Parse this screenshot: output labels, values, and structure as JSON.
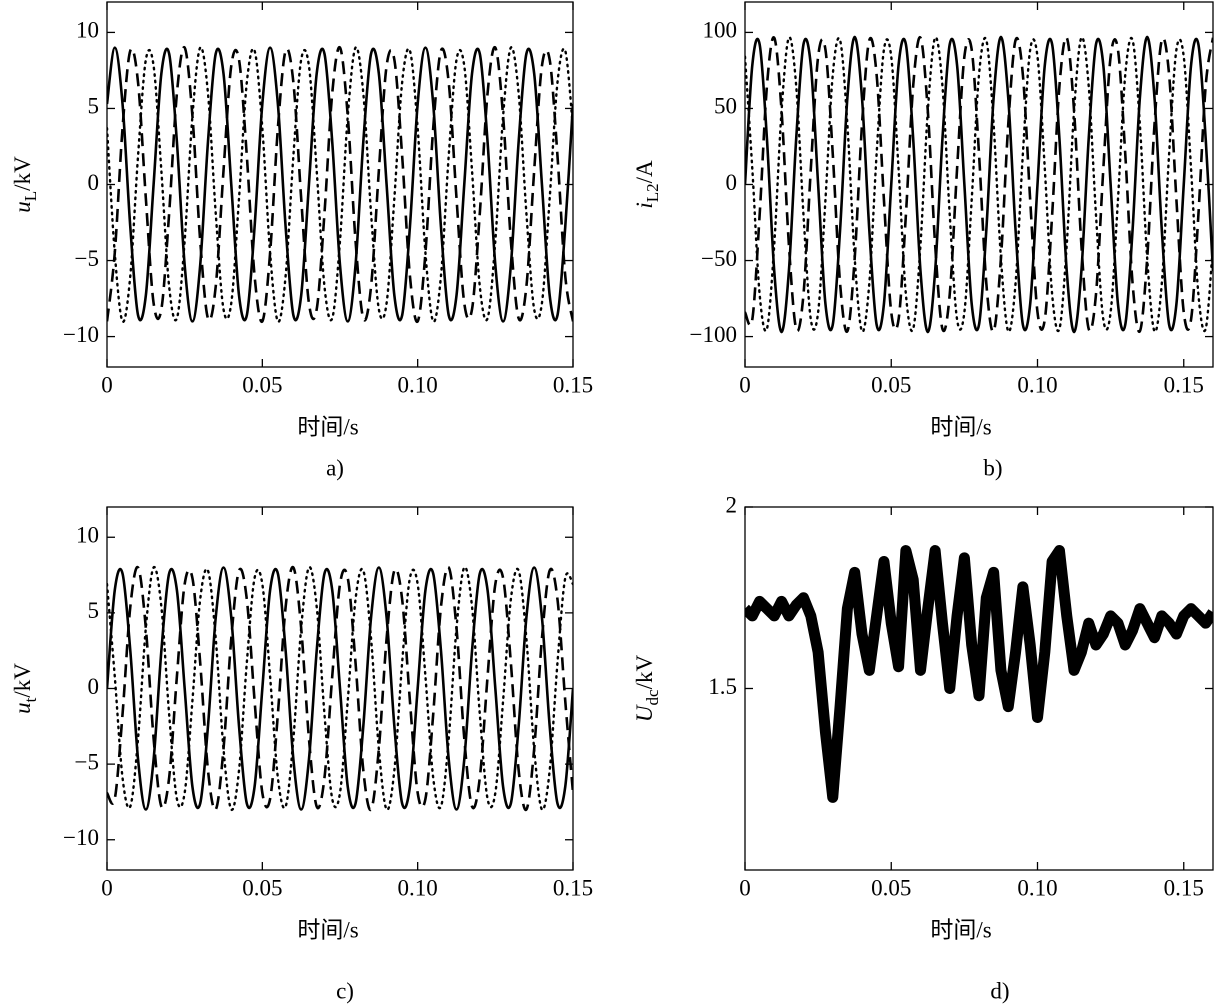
{
  "chart_data": [
    {
      "type": "line",
      "caption": "a)",
      "xlabel": "时间/s",
      "ylabel": {
        "symbol": "u",
        "sub": "L",
        "unit": "/kV"
      },
      "xlim": [
        0,
        0.15
      ],
      "ylim": [
        -12,
        12
      ],
      "xticks": [
        0,
        0.05,
        {
          "value": 0.1,
          "label": "0.10"
        },
        0.15
      ],
      "yticks": [
        {
          "value": -10,
          "label": "−10"
        },
        {
          "value": -5,
          "label": "−5"
        },
        0,
        5,
        10
      ],
      "x": [
        0,
        0.0025,
        0.005,
        0.0075,
        0.01,
        0.0125,
        0.015,
        0.0175,
        0.02,
        0.0225,
        0.025,
        0.0275,
        0.03,
        0.0325,
        0.035,
        0.0375,
        0.04,
        0.0425,
        0.045,
        0.0475,
        0.05,
        0.0525,
        0.055,
        0.0575,
        0.06,
        0.0625,
        0.065,
        0.0675,
        0.07,
        0.0725,
        0.075,
        0.0775,
        0.08,
        0.0825,
        0.085,
        0.0875,
        0.09,
        0.0925,
        0.095,
        0.0975,
        0.1,
        0.1025,
        0.105,
        0.1075,
        0.11,
        0.1125,
        0.115,
        0.1175,
        0.12,
        0.1225,
        0.125,
        0.1275,
        0.13,
        0.1325,
        0.135,
        0.1375,
        0.14,
        0.1425,
        0.145,
        0.1475,
        0.15
      ],
      "series": [
        {
          "style": "solid",
          "color": "#000000",
          "values": [
            5.3,
            9,
            5.3,
            -2.8,
            -8.6,
            -7.3,
            0,
            7.3,
            8.6,
            2.8,
            -5.3,
            -9,
            -5.3,
            2.8,
            8.6,
            7.3,
            0,
            -7.3,
            -8.6,
            -2.8,
            5.3,
            9,
            5.3,
            -2.8,
            -8.6,
            -7.3,
            0,
            7.3,
            8.6,
            2.8,
            -5.3,
            -9,
            -5.3,
            2.8,
            8.6,
            7.3,
            0,
            -7.3,
            -8.6,
            -2.8,
            5.3,
            9,
            5.3,
            -2.8,
            -8.6,
            -7.3,
            0,
            7.3,
            8.6,
            2.8,
            -5.3,
            -9,
            -5.3,
            2.8,
            8.6,
            7.3,
            0,
            -7.3,
            -8.6,
            -2.8,
            5.3
          ]
        },
        {
          "style": "dashed",
          "color": "#000000",
          "values": [
            -9,
            -4.5,
            3.7,
            8.8,
            6.7,
            -0.9,
            -7.8,
            -8.2,
            -1.9,
            6,
            9,
            4.5,
            -3.7,
            -8.8,
            -6.7,
            0.9,
            7.8,
            8.2,
            1.9,
            -6,
            -9,
            -4.5,
            3.7,
            8.8,
            6.7,
            -0.9,
            -7.8,
            -8.2,
            -1.9,
            6,
            9,
            4.5,
            -3.7,
            -8.8,
            -6.7,
            0.9,
            7.8,
            8.2,
            1.9,
            -6,
            -9,
            -4.5,
            3.7,
            8.8,
            6.7,
            -0.9,
            -7.8,
            -8.2,
            -1.9,
            6,
            9,
            4.5,
            -3.7,
            -8.8,
            -6.7,
            0.9,
            7.8,
            8.2,
            1.9,
            -6,
            -9
          ]
        },
        {
          "style": "dotted",
          "color": "#000000",
          "values": [
            3.7,
            -4.5,
            -9,
            -6,
            1.9,
            8.2,
            7.8,
            0.9,
            -6.7,
            -8.8,
            -3.7,
            4.5,
            9,
            6,
            -1.9,
            -8.2,
            -7.8,
            -0.9,
            6.7,
            8.8,
            3.7,
            -4.5,
            -9,
            -6,
            1.9,
            8.2,
            7.8,
            0.9,
            -6.7,
            -8.8,
            -3.7,
            4.5,
            9,
            6,
            -1.9,
            -8.2,
            -7.8,
            -0.9,
            6.7,
            8.8,
            3.7,
            -4.5,
            -9,
            -6,
            1.9,
            8.2,
            7.8,
            0.9,
            -6.7,
            -8.8,
            -3.7,
            4.5,
            9,
            6,
            -1.9,
            -8.2,
            -7.8,
            -0.9,
            6.7,
            8.8,
            3.7
          ]
        }
      ]
    },
    {
      "type": "line",
      "caption": "b)",
      "xlabel": "时间/s",
      "ylabel": {
        "symbol": "i",
        "sub": "L2",
        "unit": "/A"
      },
      "xlim": [
        0,
        0.16
      ],
      "ylim": [
        -120,
        120
      ],
      "xticks": [
        0,
        0.05,
        {
          "value": 0.1,
          "label": "0.10"
        },
        0.15
      ],
      "yticks": [
        {
          "value": -100,
          "label": "−100"
        },
        {
          "value": -50,
          "label": "−50"
        },
        0,
        50,
        100
      ],
      "x": [
        0,
        0.0025,
        0.005,
        0.0075,
        0.01,
        0.0125,
        0.015,
        0.0175,
        0.02,
        0.0225,
        0.025,
        0.0275,
        0.03,
        0.0325,
        0.035,
        0.0375,
        0.04,
        0.0425,
        0.045,
        0.0475,
        0.05,
        0.0525,
        0.055,
        0.0575,
        0.06,
        0.0625,
        0.065,
        0.0675,
        0.07,
        0.0725,
        0.075,
        0.0775,
        0.08,
        0.0825,
        0.085,
        0.0875,
        0.09,
        0.0925,
        0.095,
        0.0975,
        0.1,
        0.1025,
        0.105,
        0.1075,
        0.11,
        0.1125,
        0.115,
        0.1175,
        0.12,
        0.1225,
        0.125,
        0.1275,
        0.13,
        0.1325,
        0.135,
        0.1375,
        0.14,
        0.1425,
        0.145,
        0.1475,
        0.15,
        0.1525,
        0.155,
        0.1575,
        0.16
      ],
      "series": [
        {
          "style": "solid",
          "color": "#000000",
          "values": [
            0,
            78.5,
            92.2,
            30,
            -57,
            -97,
            -57,
            30,
            92.2,
            78.5,
            0,
            -78.5,
            -92.2,
            -30,
            57,
            97,
            57,
            -30,
            -92.2,
            -78.5,
            0,
            78.5,
            92.2,
            30,
            -57,
            -97,
            -57,
            30,
            92.2,
            78.5,
            0,
            -78.5,
            -92.2,
            -30,
            57,
            97,
            57,
            -30,
            -92.2,
            -78.5,
            0,
            78.5,
            92.2,
            30,
            -57,
            -97,
            -57,
            30,
            92.2,
            78.5,
            0,
            -78.5,
            -92.2,
            -30,
            57,
            97,
            57,
            -30,
            -92.2,
            -78.5,
            0,
            78.5,
            92.2,
            30,
            -57
          ]
        },
        {
          "style": "dashed",
          "color": "#000000",
          "values": [
            -84,
            -88.7,
            -20.2,
            64.9,
            96.5,
            48.5,
            -39.5,
            -94.9,
            -72.1,
            10.2,
            84,
            88.7,
            20.2,
            -64.9,
            -96.5,
            -48.5,
            39.5,
            94.9,
            72.1,
            -10.2,
            -84,
            -88.7,
            -20.2,
            64.9,
            96.5,
            48.5,
            -39.5,
            -94.9,
            -72.1,
            10.2,
            84,
            88.7,
            20.2,
            -64.9,
            -96.5,
            -48.5,
            39.5,
            94.9,
            72.1,
            -10.2,
            -84,
            -88.7,
            -20.2,
            64.9,
            96.5,
            48.5,
            -39.5,
            -94.9,
            -72.1,
            10.2,
            84,
            88.7,
            20.2,
            -64.9,
            -96.5,
            -48.5,
            39.5,
            94.9,
            72.1,
            -10.2,
            -84,
            -88.7,
            -20.2,
            64.9,
            96.5
          ]
        },
        {
          "style": "dotted",
          "color": "#000000",
          "values": [
            84,
            10.2,
            -72.1,
            -94.9,
            -39.5,
            48.5,
            96.5,
            64.9,
            -20.2,
            -88.7,
            -84,
            -10.2,
            72.1,
            94.9,
            39.5,
            -48.5,
            -96.5,
            -64.9,
            20.2,
            88.7,
            84,
            10.2,
            -72.1,
            -94.9,
            -39.5,
            48.5,
            96.5,
            64.9,
            -20.2,
            -88.7,
            -84,
            -10.2,
            72.1,
            94.9,
            39.5,
            -48.5,
            -96.5,
            -64.9,
            20.2,
            88.7,
            84,
            10.2,
            -72.1,
            -94.9,
            -39.5,
            48.5,
            96.5,
            64.9,
            -20.2,
            -88.7,
            -84,
            -10.2,
            72.1,
            94.9,
            39.5,
            -48.5,
            -96.5,
            -64.9,
            20.2,
            88.7,
            84,
            10.2,
            -72.1,
            -94.9,
            -39.5
          ]
        }
      ]
    },
    {
      "type": "line",
      "caption": "c)",
      "xlabel": "时间/s",
      "ylabel": {
        "symbol": "u",
        "sub": "t",
        "unit": "/kV"
      },
      "xlim": [
        0,
        0.15
      ],
      "ylim": [
        -12,
        12
      ],
      "xticks": [
        0,
        0.05,
        {
          "value": 0.1,
          "label": "0.10"
        },
        0.15
      ],
      "yticks": [
        {
          "value": -10,
          "label": "−10"
        },
        {
          "value": -5,
          "label": "−5"
        },
        0,
        5,
        10
      ],
      "x": [
        0,
        0.0025,
        0.005,
        0.0075,
        0.01,
        0.0125,
        0.015,
        0.0175,
        0.02,
        0.0225,
        0.025,
        0.0275,
        0.03,
        0.0325,
        0.035,
        0.0375,
        0.04,
        0.0425,
        0.045,
        0.0475,
        0.05,
        0.0525,
        0.055,
        0.0575,
        0.06,
        0.0625,
        0.065,
        0.0675,
        0.07,
        0.0725,
        0.075,
        0.0775,
        0.08,
        0.0825,
        0.085,
        0.0875,
        0.09,
        0.0925,
        0.095,
        0.0975,
        0.1,
        0.1025,
        0.105,
        0.1075,
        0.11,
        0.1125,
        0.115,
        0.1175,
        0.12,
        0.1225,
        0.125,
        0.1275,
        0.13,
        0.1325,
        0.135,
        0.1375,
        0.14,
        0.1425,
        0.145,
        0.1475,
        0.15
      ],
      "series": [
        {
          "style": "solid",
          "color": "#000000",
          "values": [
            0,
            6.5,
            7.6,
            2.5,
            -4.7,
            -8,
            -4.7,
            2.5,
            7.6,
            6.5,
            0,
            -6.5,
            -7.6,
            -2.5,
            4.7,
            8,
            4.7,
            -2.5,
            -7.6,
            -6.5,
            0,
            6.5,
            7.6,
            2.5,
            -4.7,
            -8,
            -4.7,
            2.5,
            7.6,
            6.5,
            0,
            -6.5,
            -7.6,
            -2.5,
            4.7,
            8,
            4.7,
            -2.5,
            -7.6,
            -6.5,
            0,
            6.5,
            7.6,
            2.5,
            -4.7,
            -8,
            -4.7,
            2.5,
            7.6,
            6.5,
            0,
            -6.5,
            -7.6,
            -2.5,
            4.7,
            8,
            4.7,
            -2.5,
            -7.6,
            -6.5,
            0
          ]
        },
        {
          "style": "dashed",
          "color": "#000000",
          "values": [
            -6.9,
            -7.3,
            -1.7,
            5.4,
            8,
            4,
            -3.3,
            -7.8,
            -5.9,
            0.8,
            6.9,
            7.3,
            1.7,
            -5.4,
            -8,
            -4,
            3.3,
            7.8,
            5.9,
            -0.8,
            -6.9,
            -7.3,
            -1.7,
            5.4,
            8,
            4,
            -3.3,
            -7.8,
            -5.9,
            0.8,
            6.9,
            7.3,
            1.7,
            -5.4,
            -8,
            -4,
            3.3,
            7.8,
            5.9,
            -0.8,
            -6.9,
            -7.3,
            -1.7,
            5.4,
            8,
            4,
            -3.3,
            -7.8,
            -5.9,
            0.8,
            6.9,
            7.3,
            1.7,
            -5.4,
            -8,
            -4,
            3.3,
            7.8,
            5.9,
            -0.8,
            -6.9
          ]
        },
        {
          "style": "dotted",
          "color": "#000000",
          "values": [
            6.9,
            0.8,
            -5.9,
            -7.8,
            -3.3,
            4,
            8,
            5.4,
            -1.7,
            -7.3,
            -6.9,
            -0.8,
            5.9,
            7.8,
            3.3,
            -4,
            -8,
            -5.4,
            1.7,
            7.3,
            6.9,
            0.8,
            -5.9,
            -7.8,
            -3.3,
            4,
            8,
            5.4,
            -1.7,
            -7.3,
            -6.9,
            -0.8,
            5.9,
            7.8,
            3.3,
            -4,
            -8,
            -5.4,
            1.7,
            7.3,
            6.9,
            0.8,
            -5.9,
            -7.8,
            -3.3,
            4,
            8,
            5.4,
            -1.7,
            -7.3,
            -6.9,
            -0.8,
            5.9,
            7.8,
            3.3,
            -4,
            -8,
            -5.4,
            1.7,
            7.3,
            6.9
          ]
        }
      ]
    },
    {
      "type": "band",
      "caption": "d)",
      "xlabel": "时间/s",
      "ylabel": {
        "symbol": "U",
        "sub": "dc",
        "unit": "/kV"
      },
      "xlim": [
        0,
        0.16
      ],
      "ylim": [
        1,
        2
      ],
      "xticks": [
        0,
        0.05,
        {
          "value": 0.1,
          "label": "0.10"
        },
        0.15
      ],
      "yticks": [
        1.5,
        2
      ],
      "x": [
        0,
        0.0025,
        0.005,
        0.0075,
        0.01,
        0.0125,
        0.015,
        0.0175,
        0.02,
        0.0225,
        0.025,
        0.0275,
        0.03,
        0.0325,
        0.035,
        0.0375,
        0.04,
        0.0425,
        0.045,
        0.0475,
        0.05,
        0.0525,
        0.055,
        0.0575,
        0.06,
        0.0625,
        0.065,
        0.0675,
        0.07,
        0.0725,
        0.075,
        0.0775,
        0.08,
        0.0825,
        0.085,
        0.0875,
        0.09,
        0.0925,
        0.095,
        0.0975,
        0.1,
        0.1025,
        0.105,
        0.1075,
        0.11,
        0.1125,
        0.115,
        0.1175,
        0.12,
        0.1225,
        0.125,
        0.1275,
        0.13,
        0.1325,
        0.135,
        0.1375,
        0.14,
        0.1425,
        0.145,
        0.1475,
        0.15,
        0.1525,
        0.155,
        0.1575,
        0.16
      ],
      "series": [
        {
          "style": "thick",
          "color": "#000000",
          "values": [
            1.72,
            1.7,
            1.74,
            1.72,
            1.7,
            1.74,
            1.7,
            1.73,
            1.75,
            1.7,
            1.6,
            1.38,
            1.2,
            1.45,
            1.72,
            1.82,
            1.65,
            1.55,
            1.7,
            1.85,
            1.68,
            1.56,
            1.88,
            1.8,
            1.55,
            1.72,
            1.88,
            1.68,
            1.5,
            1.7,
            1.86,
            1.62,
            1.48,
            1.75,
            1.82,
            1.55,
            1.45,
            1.6,
            1.78,
            1.62,
            1.42,
            1.6,
            1.85,
            1.88,
            1.7,
            1.55,
            1.6,
            1.68,
            1.62,
            1.65,
            1.7,
            1.68,
            1.62,
            1.66,
            1.72,
            1.68,
            1.64,
            1.7,
            1.68,
            1.65,
            1.7,
            1.72,
            1.7,
            1.68,
            1.71
          ]
        }
      ]
    }
  ]
}
